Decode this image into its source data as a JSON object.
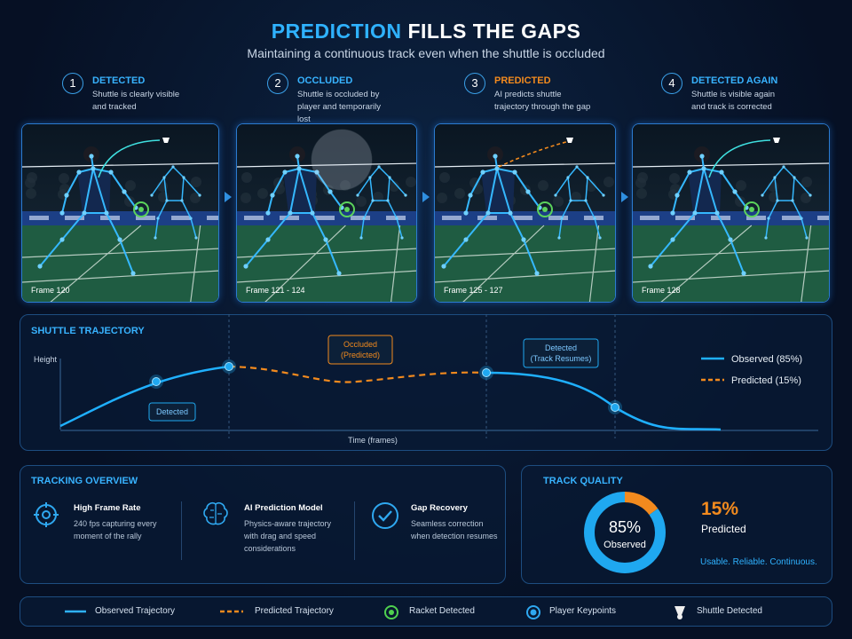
{
  "header": {
    "title_highlight": "PREDICTION",
    "title_rest": "FILLS THE GAPS",
    "subtitle": "Maintaining a continuous track even when the shuttle is occluded"
  },
  "steps": [
    {
      "number": "1",
      "title": "DETECTED",
      "text": "Shuttle is clearly visible and tracked",
      "frame": "Frame 120"
    },
    {
      "number": "2",
      "title": "OCCLUDED",
      "text": "Shuttle is occluded by player and temporarily lost",
      "frame": "Frame 121 - 124"
    },
    {
      "number": "3",
      "title": "PREDICTED",
      "text": "AI predicts shuttle trajectory through the gap",
      "frame": "Frame 125 - 127"
    },
    {
      "number": "4",
      "title": "DETECTED AGAIN",
      "text": "Shuttle is visible again and track is corrected",
      "frame": "Frame 128"
    }
  ],
  "trajectory": {
    "title": "SHUTTLE TRAJECTORY",
    "y_label": "Height",
    "x_label": "Time (frames)",
    "callouts": [
      [
        "Detected"
      ],
      [
        "Occluded",
        "(Predicted)"
      ],
      [
        "Detected",
        "(Track Resumes)"
      ]
    ],
    "legend": [
      "Observed (85%)",
      "Predicted (15%)"
    ]
  },
  "overview": {
    "title": "TRACKING OVERVIEW",
    "items": [
      {
        "title": "High Frame Rate",
        "text": "240 fps capturing every moment of the rally"
      },
      {
        "title": "AI Prediction Model",
        "text": "Physics-aware trajectory with drag and speed considerations"
      },
      {
        "title": "Gap Recovery",
        "text": "Seamless correction when detection resumes"
      }
    ]
  },
  "quality": {
    "title": "TRACK QUALITY",
    "names": [
      "Observed",
      "Predicted"
    ],
    "values": [
      85,
      15
    ],
    "value_labels": [
      "85%",
      "15%"
    ],
    "colors": [
      "#1fa8f0",
      "#f28a1e"
    ],
    "tagline": "Usable. Reliable. Continuous."
  },
  "legend": [
    "Observed Trajectory",
    "Predicted Trajectory",
    "Racket Detected",
    "Player Keypoints",
    "Shuttle Detected"
  ]
}
